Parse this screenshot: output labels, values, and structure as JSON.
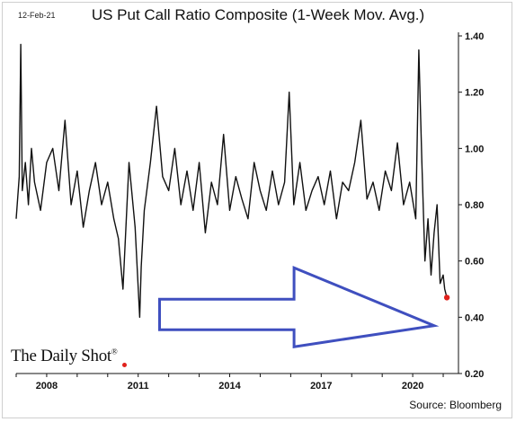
{
  "header": {
    "date": "12-Feb-21",
    "title": "US Put Call Ratio Composite (1-Week Mov. Avg.)"
  },
  "footer": {
    "source": "Source: Bloomberg",
    "brand": "The Daily Shot",
    "brand_mark": "®"
  },
  "colors": {
    "line": "#111111",
    "last_point": "#e0221c",
    "arrow": "#3f4fbf",
    "axis": "#111111"
  },
  "chart_data": {
    "type": "line",
    "title": "US Put Call Ratio Composite (1-Week Mov. Avg.)",
    "xlabel": "",
    "ylabel": "",
    "xlim": [
      2007.0,
      2021.5
    ],
    "ylim": [
      0.2,
      1.4
    ],
    "y_axis_side": "right",
    "grid": false,
    "x_ticks": [
      2008,
      2011,
      2014,
      2017,
      2020
    ],
    "x_tick_labels": [
      "2008",
      "2011",
      "2014",
      "2017",
      "2020"
    ],
    "y_ticks": [
      0.2,
      0.4,
      0.6,
      0.8,
      1.0,
      1.2,
      1.4
    ],
    "y_tick_labels": [
      "0.20",
      "0.40",
      "0.60",
      "0.80",
      "1.00",
      "1.20",
      "1.40"
    ],
    "series": [
      {
        "x": [
          2007.0,
          2007.1,
          2007.15,
          2007.2,
          2007.3,
          2007.4,
          2007.5,
          2007.6,
          2007.8,
          2008.0,
          2008.2,
          2008.4,
          2008.6,
          2008.8,
          2009.0,
          2009.2,
          2009.4,
          2009.6,
          2009.8,
          2010.0,
          2010.2,
          2010.35,
          2010.5,
          2010.7,
          2010.9,
          2011.05,
          2011.1,
          2011.2,
          2011.4,
          2011.6,
          2011.8,
          2012.0,
          2012.2,
          2012.4,
          2012.6,
          2012.8,
          2013.0,
          2013.2,
          2013.4,
          2013.6,
          2013.8,
          2014.0,
          2014.2,
          2014.4,
          2014.6,
          2014.8,
          2015.0,
          2015.2,
          2015.4,
          2015.6,
          2015.8,
          2015.95,
          2016.1,
          2016.3,
          2016.5,
          2016.7,
          2016.9,
          2017.1,
          2017.3,
          2017.5,
          2017.7,
          2017.9,
          2018.1,
          2018.3,
          2018.5,
          2018.7,
          2018.9,
          2019.1,
          2019.3,
          2019.5,
          2019.7,
          2019.9,
          2020.1,
          2020.2,
          2020.3,
          2020.4,
          2020.5,
          2020.6,
          2020.7,
          2020.8,
          2020.9,
          2021.0,
          2021.05,
          2021.12
        ],
        "values": [
          0.75,
          0.9,
          1.37,
          0.85,
          0.95,
          0.8,
          1.0,
          0.88,
          0.78,
          0.95,
          1.0,
          0.85,
          1.1,
          0.8,
          0.92,
          0.72,
          0.85,
          0.95,
          0.8,
          0.88,
          0.75,
          0.68,
          0.5,
          0.95,
          0.72,
          0.4,
          0.58,
          0.78,
          0.95,
          1.15,
          0.9,
          0.85,
          1.0,
          0.8,
          0.92,
          0.78,
          0.95,
          0.7,
          0.88,
          0.8,
          1.05,
          0.78,
          0.9,
          0.82,
          0.75,
          0.95,
          0.85,
          0.78,
          0.92,
          0.8,
          0.88,
          1.2,
          0.8,
          0.95,
          0.78,
          0.85,
          0.9,
          0.8,
          0.92,
          0.75,
          0.88,
          0.85,
          0.95,
          1.1,
          0.82,
          0.88,
          0.78,
          0.92,
          0.85,
          1.02,
          0.8,
          0.88,
          0.75,
          1.35,
          0.95,
          0.6,
          0.75,
          0.55,
          0.7,
          0.8,
          0.52,
          0.55,
          0.5,
          0.47
        ]
      }
    ],
    "last_point": {
      "x": 2021.12,
      "y": 0.47
    },
    "arrow": {
      "from": [
        2011.7,
        0.41
      ],
      "to": [
        2020.7,
        0.37
      ]
    }
  }
}
